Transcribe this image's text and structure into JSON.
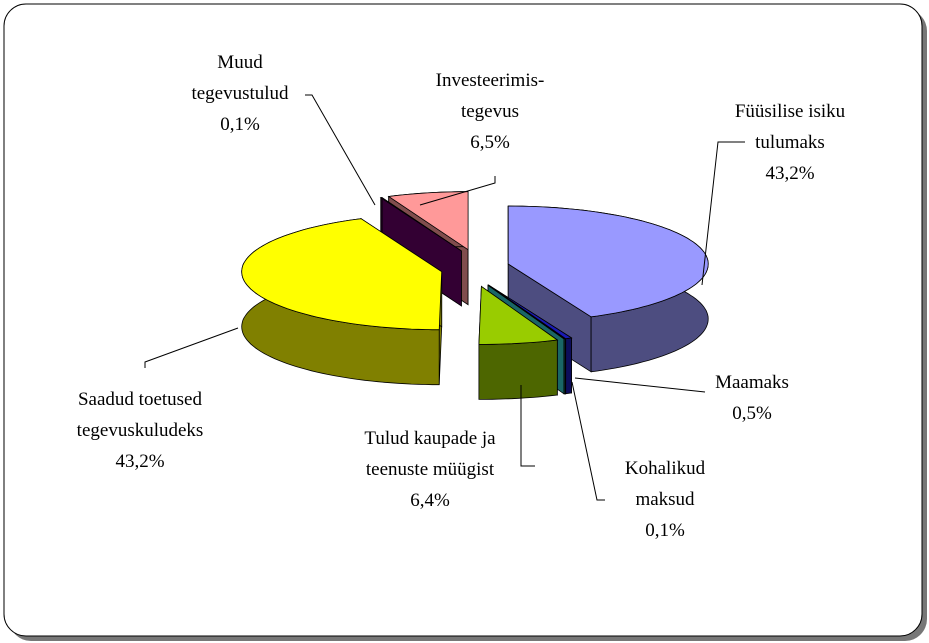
{
  "chart_data": {
    "type": "pie",
    "categories": [
      "Füüsilise isiku\ntulumaks",
      "Maamaks",
      "Kohalikud\nmaksud",
      "Tulud kaupade ja\nteenuste müügist",
      "Saadud toetused\ntegevuskuludeks",
      "Muud\ntegevustulud",
      "Investeerimis-\ntegevus"
    ],
    "values": [
      43.2,
      0.5,
      0.1,
      6.4,
      43.2,
      0.1,
      6.5
    ],
    "value_labels": [
      "43,2%",
      "0,5%",
      "0,1%",
      "6,4%",
      "43,2%",
      "0,1%",
      "6,5%"
    ],
    "colors": [
      "#9999ff",
      "#1a1ab3",
      "#33cccc",
      "#99cc00",
      "#ffff00",
      "#660066",
      "#ff9999"
    ]
  }
}
